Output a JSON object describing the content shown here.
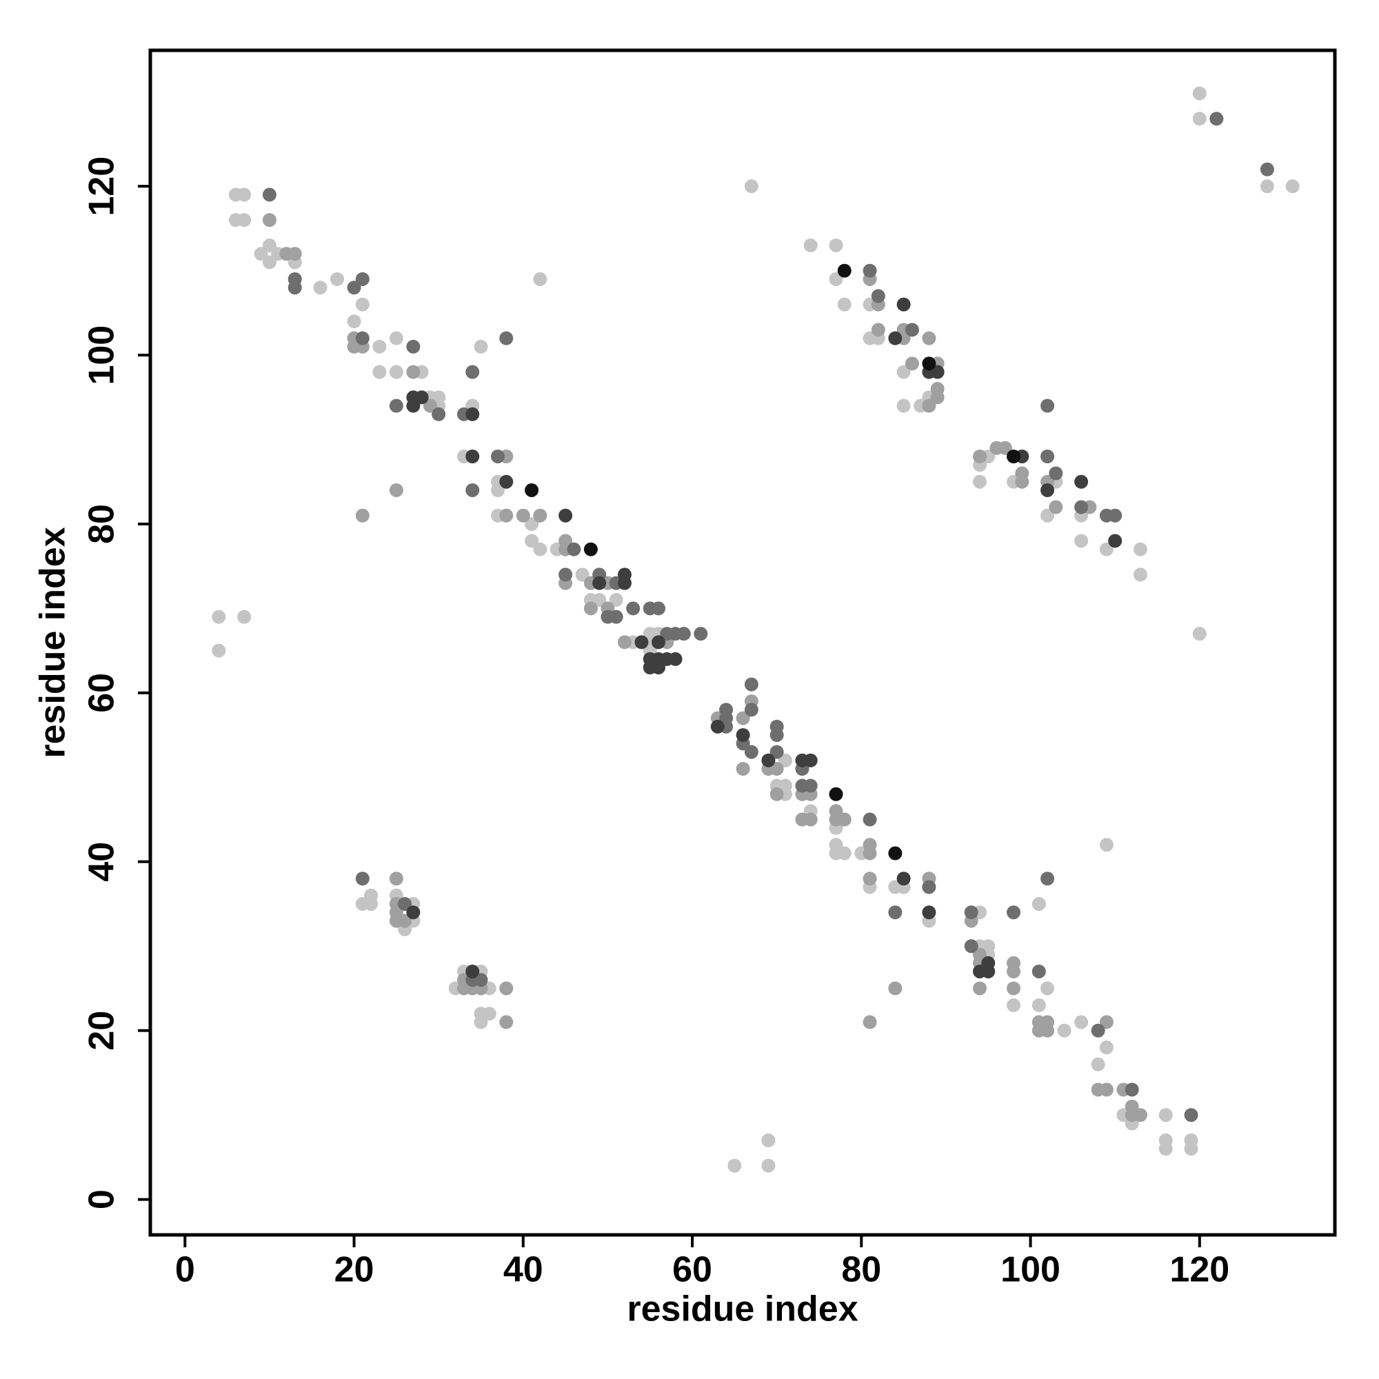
{
  "chart_data": {
    "type": "scatter",
    "xlabel": "residue index",
    "ylabel": "residue index",
    "xlim": [
      -4.1,
      136
    ],
    "ylim": [
      -4.2,
      136.1
    ],
    "xticks": [
      0,
      20,
      40,
      60,
      80,
      100,
      120
    ],
    "yticks": [
      0,
      20,
      40,
      60,
      80,
      100,
      120
    ],
    "grid": false,
    "series": [
      {
        "color": "#c4c4c4",
        "x": [
          6,
          7,
          6,
          7,
          9,
          10,
          10,
          11,
          13,
          16,
          18,
          21,
          20,
          23,
          23,
          25,
          25,
          28,
          29,
          30,
          30,
          35,
          34,
          33,
          37,
          37,
          37,
          42,
          41,
          41,
          42,
          44,
          47,
          49,
          48,
          49,
          51,
          53,
          55,
          55,
          56,
          55,
          4,
          7,
          4,
          67,
          71,
          70,
          71,
          71,
          74,
          77,
          77,
          77,
          78,
          80,
          81,
          84,
          85,
          88,
          94,
          94,
          95,
          95,
          98,
          101,
          102,
          101,
          109,
          104,
          106,
          109,
          108,
          111,
          112,
          116,
          116,
          119,
          116,
          119,
          65,
          69,
          69,
          21,
          22,
          22,
          25,
          26,
          27,
          27,
          32,
          33,
          35,
          36,
          35,
          36,
          35,
          74,
          77,
          77,
          78,
          81,
          81,
          82,
          85,
          85,
          87,
          88,
          94,
          94,
          95,
          98,
          103,
          102,
          106,
          106,
          109,
          113,
          113,
          120,
          120,
          120,
          128,
          131
        ],
        "values": [
          119,
          119,
          116,
          116,
          112,
          113,
          111,
          112,
          111,
          108,
          109,
          106,
          104,
          101,
          98,
          102,
          98,
          98,
          95,
          95,
          94,
          101,
          94,
          88,
          85,
          84,
          81,
          109,
          80,
          78,
          77,
          77,
          74,
          74,
          71,
          71,
          71,
          66,
          67,
          66,
          67,
          65,
          69,
          69,
          65,
          120,
          52,
          49,
          49,
          48,
          46,
          44,
          42,
          41,
          41,
          41,
          37,
          37,
          37,
          33,
          34,
          30,
          30,
          29,
          23,
          23,
          25,
          35,
          42,
          20,
          21,
          18,
          16,
          10,
          9,
          10,
          7,
          7,
          6,
          6,
          4,
          4,
          7,
          35,
          36,
          35,
          36,
          32,
          35,
          33,
          25,
          27,
          27,
          25,
          22,
          22,
          21,
          113,
          113,
          109,
          106,
          106,
          102,
          102,
          98,
          94,
          94,
          95,
          87,
          85,
          88,
          85,
          85,
          81,
          81,
          78,
          77,
          77,
          74,
          67,
          131,
          128,
          120,
          120
        ]
      },
      {
        "color": "#a0a0a0",
        "x": [
          10,
          12,
          13,
          20,
          21,
          20,
          25,
          27,
          29,
          38,
          38,
          40,
          42,
          45,
          45,
          45,
          48,
          50,
          50,
          48,
          52,
          57,
          63,
          66,
          67,
          66,
          69,
          70,
          70,
          73,
          74,
          73,
          74,
          77,
          77,
          78,
          81,
          81,
          81,
          88,
          93,
          94,
          94,
          94,
          98,
          98,
          98,
          101,
          102,
          101,
          102,
          109,
          108,
          109,
          111,
          112,
          112,
          113,
          81,
          84,
          21,
          25,
          25,
          25,
          25,
          26,
          33,
          33,
          34,
          35,
          38,
          38,
          81,
          82,
          82,
          85,
          85,
          86,
          88,
          89,
          89,
          89,
          88,
          94,
          96,
          97,
          99,
          99,
          102,
          103,
          107
        ],
        "values": [
          116,
          112,
          112,
          102,
          101,
          101,
          84,
          98,
          94,
          88,
          81,
          81,
          81,
          78,
          77,
          73,
          73,
          73,
          70,
          70,
          66,
          66,
          57,
          57,
          59,
          51,
          51,
          51,
          48,
          48,
          48,
          45,
          45,
          46,
          45,
          45,
          42,
          41,
          38,
          38,
          33,
          29,
          28,
          25,
          28,
          27,
          25,
          21,
          21,
          20,
          20,
          21,
          13,
          13,
          13,
          11,
          10,
          10,
          21,
          25,
          81,
          38,
          35,
          34,
          33,
          33,
          26,
          25,
          25,
          25,
          25,
          21,
          109,
          106,
          103,
          102,
          103,
          99,
          102,
          99,
          96,
          95,
          94,
          88,
          89,
          89,
          86,
          85,
          85,
          82,
          82
        ]
      },
      {
        "color": "#6e6e6e",
        "x": [
          10,
          13,
          13,
          20,
          21,
          21,
          27,
          38,
          30,
          33,
          37,
          45,
          50,
          51,
          53,
          55,
          56,
          59,
          61,
          58,
          57,
          51,
          64,
          64,
          64,
          67,
          67,
          66,
          67,
          70,
          70,
          70,
          73,
          73,
          74,
          81,
          84,
          88,
          93,
          98,
          93,
          101,
          102,
          108,
          112,
          119,
          21,
          26,
          34,
          35,
          81,
          82,
          86,
          102,
          102,
          103,
          106,
          109,
          110,
          122,
          128,
          25,
          34,
          34,
          49,
          46
        ],
        "values": [
          119,
          109,
          108,
          108,
          109,
          102,
          101,
          102,
          93,
          93,
          88,
          74,
          69,
          69,
          70,
          70,
          70,
          67,
          67,
          67,
          67,
          73,
          56,
          57,
          58,
          58,
          61,
          54,
          53,
          56,
          55,
          53,
          51,
          49,
          49,
          45,
          34,
          37,
          34,
          34,
          30,
          27,
          38,
          20,
          13,
          10,
          38,
          35,
          26,
          26,
          110,
          107,
          103,
          94,
          88,
          86,
          82,
          81,
          81,
          128,
          122,
          94,
          98,
          84,
          74,
          77
        ]
      },
      {
        "color": "#3e3e3e",
        "x": [
          27,
          28,
          27,
          34,
          38,
          45,
          49,
          52,
          52,
          54,
          55,
          56,
          58,
          56,
          55,
          57,
          56,
          63,
          66,
          69,
          73,
          74,
          85,
          88,
          94,
          95,
          95,
          27,
          34,
          84,
          85,
          88,
          89,
          99,
          102,
          106,
          110,
          34
        ],
        "values": [
          95,
          95,
          94,
          93,
          85,
          81,
          73,
          74,
          73,
          66,
          64,
          63,
          64,
          66,
          63,
          64,
          64,
          56,
          55,
          52,
          52,
          52,
          38,
          34,
          27,
          27,
          28,
          34,
          27,
          102,
          106,
          98,
          98,
          88,
          84,
          85,
          78,
          88
        ]
      },
      {
        "color": "#111111",
        "x": [
          41,
          48,
          77,
          84,
          78,
          88,
          98
        ],
        "values": [
          84,
          77,
          48,
          41,
          110,
          99,
          88
        ]
      }
    ]
  }
}
